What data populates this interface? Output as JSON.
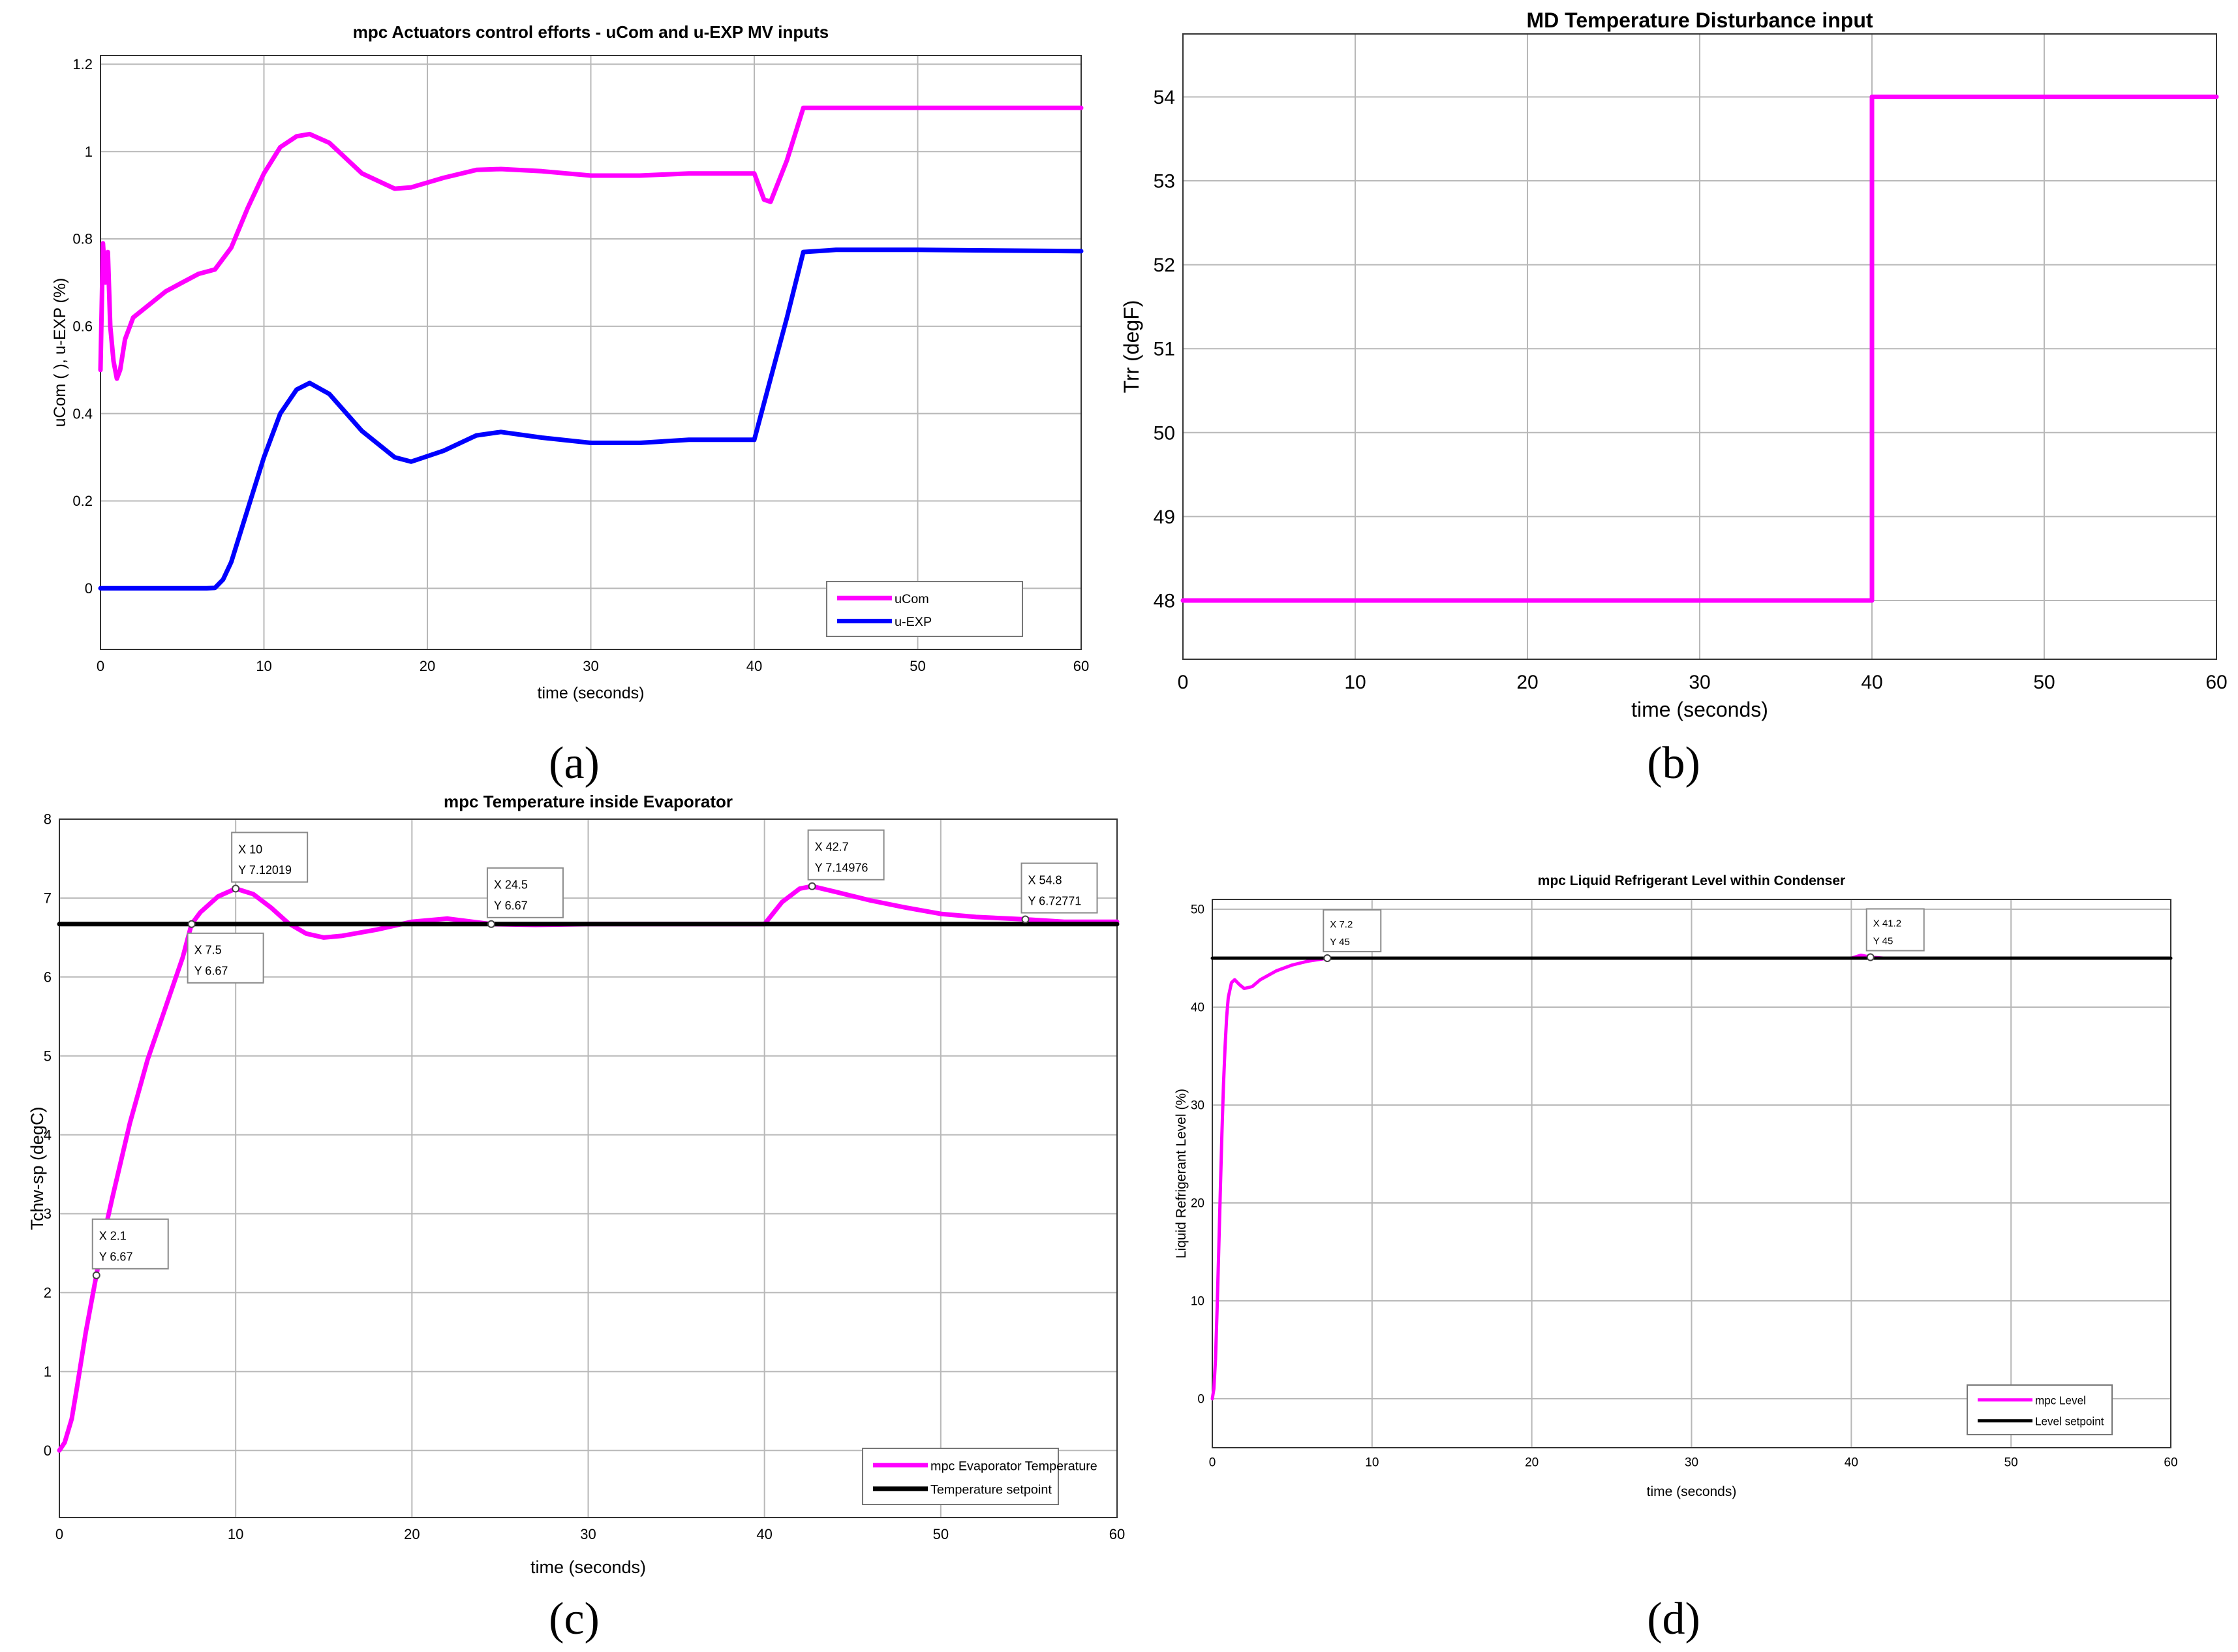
{
  "figure": {
    "captions": [
      "(a)",
      "(b)",
      "(c)",
      "(d)"
    ]
  },
  "chart_data": [
    {
      "type": "line",
      "panel": "a",
      "title": "mpc Actuators control efforts - uCom and u-EXP MV inputs",
      "xlabel": "time (seconds)",
      "ylabel": "uCom ( ), u-EXP (%)",
      "xlim": [
        0,
        60
      ],
      "ylim": [
        -0.14,
        1.22
      ],
      "xticks": [
        0,
        10,
        20,
        30,
        40,
        50,
        60
      ],
      "yticks": [
        0,
        0.2,
        0.4,
        0.6,
        0.8,
        1,
        1.2
      ],
      "ytick_labels": [
        "0",
        "0.2",
        "0.4",
        "0.6",
        "0.8",
        "1",
        "1.2"
      ],
      "grid": true,
      "legend": "bottom-right",
      "series": [
        {
          "name": "uCom",
          "color": "#ff00ff",
          "x": [
            0,
            0.15,
            0.3,
            0.45,
            0.6,
            0.8,
            1,
            1.2,
            1.5,
            2,
            3,
            4,
            5,
            6,
            7,
            8,
            9,
            10,
            11,
            12,
            12.8,
            14,
            16,
            18,
            19,
            21,
            23,
            24.5,
            27,
            30,
            33,
            36,
            39,
            40,
            40.6,
            41,
            42,
            43,
            50,
            60
          ],
          "y": [
            0.5,
            0.79,
            0.7,
            0.77,
            0.6,
            0.52,
            0.48,
            0.5,
            0.57,
            0.62,
            0.65,
            0.68,
            0.7,
            0.72,
            0.73,
            0.78,
            0.87,
            0.95,
            1.01,
            1.035,
            1.04,
            1.02,
            0.95,
            0.915,
            0.918,
            0.94,
            0.958,
            0.96,
            0.955,
            0.945,
            0.945,
            0.95,
            0.95,
            0.95,
            0.89,
            0.885,
            0.98,
            1.1,
            1.1,
            1.1
          ]
        },
        {
          "name": "u-EXP",
          "color": "#0000ff",
          "x": [
            0,
            6.5,
            7,
            7.5,
            8,
            9,
            10,
            11,
            12,
            12.8,
            14,
            16,
            18,
            19,
            21,
            23,
            24.5,
            27,
            30,
            33,
            36,
            39,
            40,
            40.5,
            41,
            42,
            43,
            45,
            50,
            60
          ],
          "y": [
            0,
            0,
            0.001,
            0.02,
            0.06,
            0.18,
            0.3,
            0.4,
            0.455,
            0.47,
            0.445,
            0.36,
            0.3,
            0.29,
            0.315,
            0.35,
            0.358,
            0.345,
            0.333,
            0.333,
            0.34,
            0.34,
            0.34,
            0.41,
            0.48,
            0.62,
            0.77,
            0.775,
            0.775,
            0.772
          ]
        }
      ]
    },
    {
      "type": "line",
      "panel": "b",
      "title": "MD Temperature Disturbance input",
      "xlabel": "time (seconds)",
      "ylabel": "Trr (degF)",
      "xlim": [
        0,
        60
      ],
      "ylim": [
        47.3,
        54.75
      ],
      "xticks": [
        0,
        10,
        20,
        30,
        40,
        50,
        60
      ],
      "yticks": [
        48,
        49,
        50,
        51,
        52,
        53,
        54
      ],
      "grid": true,
      "legend": "none",
      "series": [
        {
          "name": "",
          "color": "#ff00ff",
          "x": [
            0,
            40,
            40,
            60
          ],
          "y": [
            48,
            48,
            54,
            54
          ]
        }
      ]
    },
    {
      "type": "line",
      "panel": "c",
      "title": "mpc  Temperature  inside Evaporator",
      "xlabel": "time (seconds)",
      "ylabel": "Tchw-sp (degC)",
      "xlim": [
        0,
        60
      ],
      "ylim": [
        -0.85,
        8
      ],
      "xticks": [
        0,
        10,
        20,
        30,
        40,
        50,
        60
      ],
      "yticks": [
        0,
        1,
        2,
        3,
        4,
        5,
        6,
        7,
        8
      ],
      "grid": true,
      "legend": "bottom-right",
      "series": [
        {
          "name": "mpc Evaporator Temperature",
          "color": "#ff00ff",
          "x": [
            0,
            0.3,
            0.7,
            1,
            1.5,
            2,
            2.5,
            3,
            4,
            5,
            6,
            7,
            7.5,
            8,
            9,
            10,
            11,
            12,
            13,
            14,
            15,
            16,
            18,
            20,
            22,
            24.5,
            27,
            30,
            33,
            36,
            39,
            40,
            41,
            42,
            42.7,
            44,
            46,
            48,
            50,
            52,
            54.8,
            57,
            60
          ],
          "y": [
            0,
            0.1,
            0.4,
            0.8,
            1.5,
            2.1,
            2.7,
            3.2,
            4.15,
            4.95,
            5.6,
            6.25,
            6.67,
            6.82,
            7.02,
            7.12,
            7.05,
            6.88,
            6.68,
            6.55,
            6.5,
            6.52,
            6.6,
            6.7,
            6.74,
            6.67,
            6.66,
            6.67,
            6.67,
            6.67,
            6.67,
            6.67,
            6.95,
            7.12,
            7.15,
            7.08,
            6.97,
            6.88,
            6.8,
            6.76,
            6.73,
            6.7,
            6.7
          ]
        },
        {
          "name": "Temperature setpoint",
          "color": "#000000",
          "x": [
            0,
            60
          ],
          "y": [
            6.67,
            6.67
          ]
        }
      ],
      "annotations": [
        {
          "x": 2.1,
          "xl": "X 2.1",
          "yl": "Y 6.67"
        },
        {
          "x": 7.5,
          "xl": "X 7.5",
          "yl": "Y 6.67"
        },
        {
          "x": 10,
          "xl": "X 10",
          "yl": "Y 7.12019"
        },
        {
          "x": 24.5,
          "xl": "X 24.5",
          "yl": "Y 6.67"
        },
        {
          "x": 42.7,
          "xl": "X 42.7",
          "yl": "Y 7.14976"
        },
        {
          "x": 54.8,
          "xl": "X 54.8",
          "yl": "Y 6.72771"
        }
      ]
    },
    {
      "type": "line",
      "panel": "d",
      "title": "mpc Liquid Refrigerant Level within Condenser",
      "xlabel": "time (seconds)",
      "ylabel": "Liquid Refrigerant Level (%)",
      "xlim": [
        0,
        60
      ],
      "ylim": [
        -5,
        51
      ],
      "xticks": [
        0,
        10,
        20,
        30,
        40,
        50,
        60
      ],
      "yticks": [
        0,
        10,
        20,
        30,
        40,
        50
      ],
      "grid": true,
      "legend": "bottom-right",
      "series": [
        {
          "name": "mpc Level",
          "color": "#ff00ff",
          "x": [
            0,
            0.1,
            0.2,
            0.3,
            0.4,
            0.5,
            0.6,
            0.7,
            0.8,
            0.9,
            1.0,
            1.2,
            1.4,
            1.7,
            2.0,
            2.5,
            3,
            4,
            5,
            6,
            7.2,
            10,
            20,
            30,
            40,
            40.6,
            41.2,
            42,
            45,
            50
          ],
          "y": [
            0,
            1,
            4,
            9,
            15,
            21,
            27,
            32,
            36,
            39,
            41,
            42.5,
            42.8,
            42.3,
            41.9,
            42.1,
            42.8,
            43.7,
            44.3,
            44.7,
            45,
            45,
            45,
            45,
            45,
            45.3,
            45.1,
            45,
            45,
            45
          ]
        },
        {
          "name": "Level setpoint",
          "color": "#000000",
          "x": [
            0,
            60
          ],
          "y": [
            45,
            45
          ]
        }
      ],
      "annotations": [
        {
          "x": 7.2,
          "xl": "X 7.2",
          "yl": "Y 45"
        },
        {
          "x": 41.2,
          "xl": "X 41.2",
          "yl": "Y 45"
        }
      ]
    }
  ]
}
